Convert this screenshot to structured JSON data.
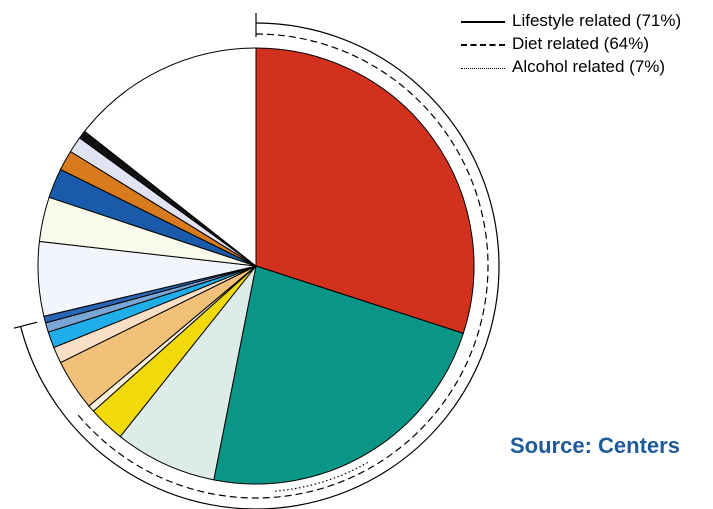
{
  "chart_data": {
    "type": "pie",
    "start": "top",
    "direction": "clockwise",
    "slices": [
      {
        "value": 30.0,
        "color": "#d2311d"
      },
      {
        "value": 23.1,
        "color": "#0a9686"
      },
      {
        "value": 7.6,
        "color": "#ddebe9"
      },
      {
        "value": 2.7,
        "color": "#f2d90a"
      },
      {
        "value": 0.5,
        "color": "#f8f0dc"
      },
      {
        "value": 3.8,
        "color": "#f1c17a"
      },
      {
        "value": 1.2,
        "color": "#f9dfc5"
      },
      {
        "value": 1.2,
        "color": "#1faeea"
      },
      {
        "value": 0.7,
        "color": "#7aa6d6"
      },
      {
        "value": 0.5,
        "color": "#2a64b4"
      },
      {
        "value": 5.5,
        "color": "#f2f5fb"
      },
      {
        "value": 3.3,
        "color": "#f9f9ec"
      },
      {
        "value": 2.2,
        "color": "#1a5aaa"
      },
      {
        "value": 1.5,
        "color": "#d87b1f"
      },
      {
        "value": 1.2,
        "color": "#e2e3f2"
      },
      {
        "value": 0.6,
        "color": "#111111"
      },
      {
        "value": 14.4,
        "color": "#ffffff"
      }
    ],
    "groups": [
      {
        "name": "Lifestyle related (71%)",
        "style": "solid",
        "percent": 71
      },
      {
        "name": "Diet related (64%)",
        "style": "dashed",
        "percent": 64
      },
      {
        "name": "Alcohol related (7%)",
        "style": "dotted",
        "percent": 7
      }
    ],
    "legend_position": "top-right"
  },
  "source_text": "Source: Centers"
}
